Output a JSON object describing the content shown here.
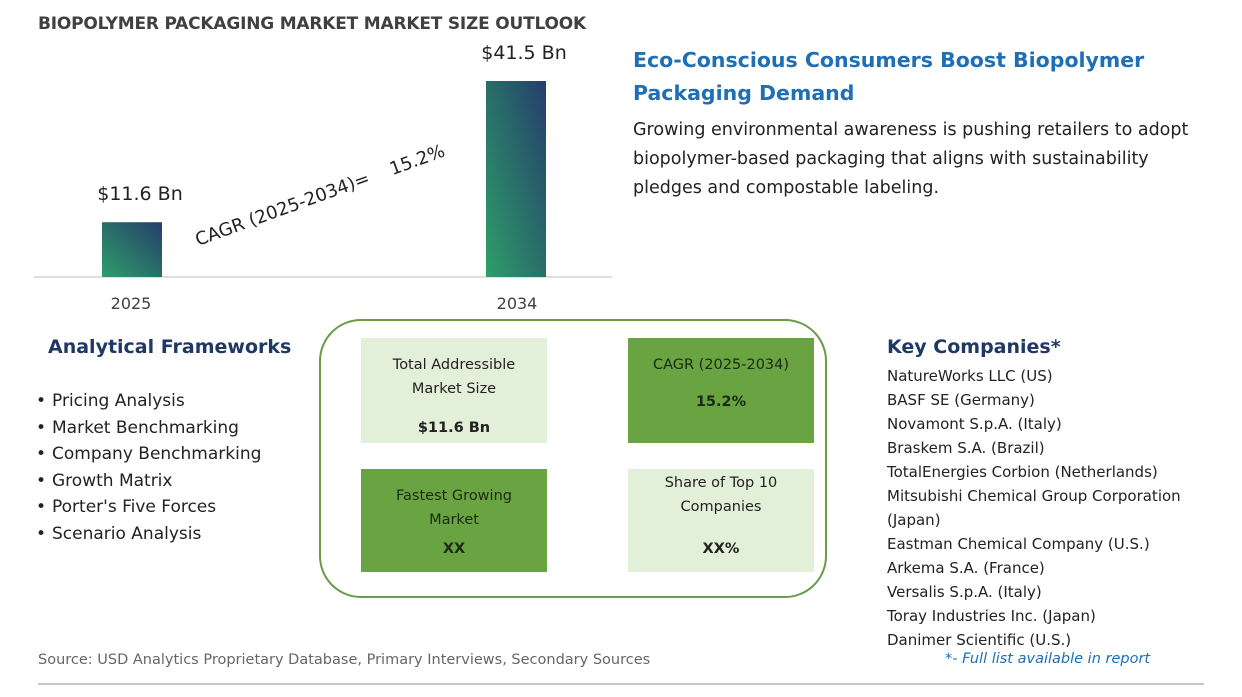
{
  "title": "BIOPOLYMER PACKAGING MARKET MARKET SIZE OUTLOOK",
  "chart_data": {
    "type": "bar",
    "categories": [
      "2025",
      "2034"
    ],
    "values": [
      11.6,
      41.5
    ],
    "value_labels": [
      "$11.6 Bn",
      "$41.5 Bn"
    ],
    "annotation": "CAGR (2025-2034)=    15.2%",
    "title": "",
    "xlabel": "",
    "ylabel": "",
    "ylim": [
      0,
      41.5
    ],
    "grid": false,
    "bar_gradient": [
      "#2e9e6a",
      "#253e6b"
    ],
    "axis_color": "#bfbfbf"
  },
  "headline": "Eco-Conscious Consumers Boost Biopolymer Packaging Demand",
  "summary": "Growing environmental awareness is pushing retailers to adopt biopolymer-based packaging that aligns with sustainability pledges and compostable labeling.",
  "frameworks": {
    "title": "Analytical Frameworks",
    "items": [
      "Pricing Analysis",
      "Market Benchmarking",
      "Company Benchmarking",
      "Growth Matrix",
      "Porter's Five Forces",
      "Scenario Analysis"
    ]
  },
  "metrics": [
    {
      "label": "Total Addressible Market Size",
      "value": "$11.6 Bn",
      "style": "light"
    },
    {
      "label": "CAGR (2025-2034)",
      "value": "15.2%",
      "style": "dark"
    },
    {
      "label": "Fastest Growing Market",
      "value": "XX",
      "style": "dark"
    },
    {
      "label": "Share of Top 10 Companies",
      "value": "XX%",
      "style": "light"
    }
  ],
  "companies": {
    "title": "Key Companies*",
    "items": [
      "NatureWorks LLC (US)",
      "BASF SE (Germany)",
      "Novamont S.p.A. (Italy)",
      "Braskem S.A. (Brazil)",
      "TotalEnergies Corbion (Netherlands)",
      "Mitsubishi Chemical Group Corporation (Japan)",
      "Eastman Chemical Company (U.S.)",
      "Arkema S.A. (France)",
      "Versalis S.p.A. (Italy)",
      "Toray Industries Inc. (Japan)",
      "Danimer Scientific (U.S.)"
    ],
    "footnote": "*- Full list available in report"
  },
  "source": "Source: USD Analytics Proprietary Database, Primary Interviews, Secondary Sources"
}
